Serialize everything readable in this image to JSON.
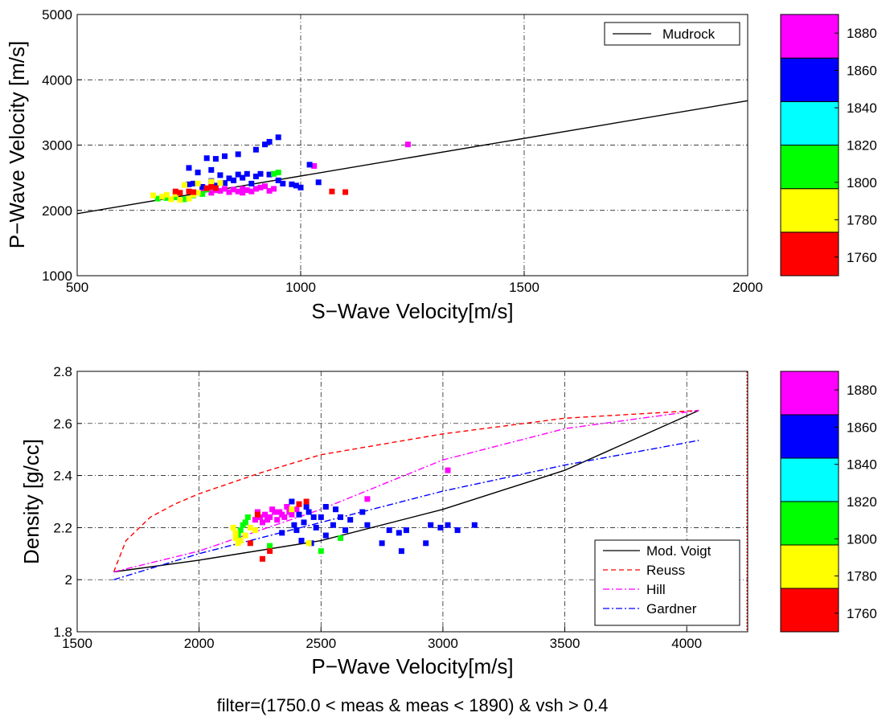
{
  "footer": "filter=(1750.0 < meas & meas < 1890) & vsh > 0.4",
  "colorbar": {
    "ticks": [
      1760,
      1780,
      1800,
      1820,
      1840,
      1860,
      1880
    ],
    "range": [
      1750,
      1890
    ],
    "colors": [
      "#ff0000",
      "#ffff00",
      "#00ff00",
      "#00ffff",
      "#0000ff",
      "#ff00ff"
    ]
  },
  "chart_data": [
    {
      "type": "scatter",
      "xlabel": "S−Wave Velocity[m/s]",
      "ylabel": "P−Wave Velocity [m/s]",
      "xlim": [
        500,
        2000
      ],
      "ylim": [
        1000,
        5000
      ],
      "xticks": [
        500,
        1000,
        1500,
        2000
      ],
      "yticks": [
        1000,
        2000,
        3000,
        4000,
        5000
      ],
      "grid": true,
      "legend_position": "top-right",
      "lines": [
        {
          "name": "Mudrock",
          "color": "#000000",
          "dash": "solid",
          "points": [
            [
              500,
              1950
            ],
            [
              2000,
              3680
            ]
          ]
        }
      ],
      "points": [
        [
          1240,
          3010,
          1880
        ],
        [
          1030,
          2680,
          1880
        ],
        [
          920,
          2370,
          1880
        ],
        [
          900,
          2330,
          1880
        ],
        [
          880,
          2310,
          1880
        ],
        [
          860,
          2290,
          1880
        ],
        [
          840,
          2280,
          1880
        ],
        [
          820,
          2300,
          1880
        ],
        [
          800,
          2270,
          1880
        ],
        [
          780,
          2290,
          1880
        ],
        [
          940,
          2330,
          1880
        ],
        [
          910,
          2350,
          1880
        ],
        [
          870,
          2330,
          1880
        ],
        [
          850,
          2320,
          1880
        ],
        [
          830,
          2330,
          1880
        ],
        [
          810,
          2310,
          1880
        ],
        [
          890,
          2290,
          1880
        ],
        [
          930,
          2300,
          1880
        ],
        [
          760,
          2260,
          1880
        ],
        [
          870,
          2270,
          1880
        ],
        [
          950,
          3120,
          1860
        ],
        [
          930,
          3050,
          1860
        ],
        [
          920,
          3010,
          1860
        ],
        [
          900,
          2930,
          1860
        ],
        [
          860,
          2860,
          1860
        ],
        [
          830,
          2830,
          1860
        ],
        [
          810,
          2790,
          1860
        ],
        [
          790,
          2800,
          1860
        ],
        [
          750,
          2650,
          1860
        ],
        [
          770,
          2580,
          1860
        ],
        [
          800,
          2620,
          1860
        ],
        [
          820,
          2540,
          1860
        ],
        [
          840,
          2490,
          1860
        ],
        [
          880,
          2560,
          1860
        ],
        [
          900,
          2520,
          1860
        ],
        [
          950,
          2460,
          1860
        ],
        [
          980,
          2400,
          1860
        ],
        [
          1000,
          2350,
          1860
        ],
        [
          1020,
          2700,
          1860
        ],
        [
          1040,
          2430,
          1860
        ],
        [
          960,
          2410,
          1860
        ],
        [
          850,
          2460,
          1860
        ],
        [
          870,
          2500,
          1860
        ],
        [
          810,
          2380,
          1860
        ],
        [
          780,
          2360,
          1860
        ],
        [
          910,
          2560,
          1860
        ],
        [
          930,
          2550,
          1860
        ],
        [
          860,
          2550,
          1860
        ],
        [
          990,
          2380,
          1860
        ],
        [
          890,
          2410,
          1860
        ],
        [
          830,
          2420,
          1860
        ],
        [
          750,
          2400,
          1860
        ],
        [
          800,
          2450,
          1860
        ],
        [
          760,
          2410,
          1860
        ],
        [
          950,
          2580,
          1800
        ],
        [
          700,
          2190,
          1800
        ],
        [
          720,
          2200,
          1800
        ],
        [
          740,
          2170,
          1800
        ],
        [
          760,
          2230,
          1800
        ],
        [
          780,
          2250,
          1800
        ],
        [
          790,
          2320,
          1800
        ],
        [
          680,
          2180,
          1800
        ],
        [
          940,
          2560,
          1800
        ],
        [
          670,
          2230,
          1780
        ],
        [
          690,
          2210,
          1780
        ],
        [
          710,
          2170,
          1780
        ],
        [
          730,
          2160,
          1780
        ],
        [
          750,
          2180,
          1780
        ],
        [
          760,
          2240,
          1780
        ],
        [
          770,
          2270,
          1780
        ],
        [
          740,
          2390,
          1780
        ],
        [
          770,
          2410,
          1780
        ],
        [
          800,
          2440,
          1780
        ],
        [
          820,
          2420,
          1780
        ],
        [
          720,
          2250,
          1780
        ],
        [
          700,
          2240,
          1780
        ],
        [
          1070,
          2290,
          1760
        ],
        [
          1100,
          2280,
          1760
        ],
        [
          720,
          2290,
          1760
        ],
        [
          730,
          2270,
          1760
        ],
        [
          750,
          2290,
          1760
        ],
        [
          760,
          2280,
          1760
        ],
        [
          790,
          2340,
          1760
        ],
        [
          810,
          2340,
          1760
        ],
        [
          800,
          2360,
          1760
        ]
      ]
    },
    {
      "type": "scatter",
      "xlabel": "P−Wave Velocity[m/s]",
      "ylabel": "Density [g/cc]",
      "xlim": [
        1500,
        4250
      ],
      "ylim": [
        1.8,
        2.8
      ],
      "xticks": [
        1500,
        2000,
        2500,
        3000,
        3500,
        4000
      ],
      "yticks": [
        1.8,
        2,
        2.2,
        2.4,
        2.6,
        2.8
      ],
      "grid": true,
      "legend_position": "bottom-right",
      "lines": [
        {
          "name": "Mod. Voigt",
          "color": "#000000",
          "dash": "solid",
          "points": [
            [
              1650,
              2.03
            ],
            [
              2000,
              2.075
            ],
            [
              2500,
              2.15
            ],
            [
              3000,
              2.27
            ],
            [
              3500,
              2.42
            ],
            [
              4050,
              2.65
            ]
          ]
        },
        {
          "name": "Reuss",
          "color": "#ff0000",
          "dash": "dashed",
          "points": [
            [
              1650,
              2.03
            ],
            [
              1700,
              2.15
            ],
            [
              1800,
              2.24
            ],
            [
              1900,
              2.29
            ],
            [
              2000,
              2.33
            ],
            [
              2250,
              2.41
            ],
            [
              2500,
              2.48
            ],
            [
              3000,
              2.56
            ],
            [
              3500,
              2.62
            ],
            [
              4050,
              2.65
            ]
          ]
        },
        {
          "name": "Hill",
          "color": "#ff00ff",
          "dash": "dashdot",
          "points": [
            [
              1650,
              2.03
            ],
            [
              2000,
              2.11
            ],
            [
              2500,
              2.27
            ],
            [
              3000,
              2.46
            ],
            [
              3500,
              2.58
            ],
            [
              4050,
              2.65
            ]
          ]
        },
        {
          "name": "Gardner",
          "color": "#0000ff",
          "dash": "dashdot",
          "points": [
            [
              1650,
              2.0
            ],
            [
              2000,
              2.1
            ],
            [
              2500,
              2.22
            ],
            [
              3000,
              2.34
            ],
            [
              3500,
              2.44
            ],
            [
              4050,
              2.535
            ]
          ]
        }
      ],
      "vertical_line": {
        "x": 4250,
        "color": "#ff0000"
      },
      "points": [
        [
          3020,
          2.42,
          1880
        ],
        [
          2690,
          2.31,
          1880
        ],
        [
          2400,
          2.27,
          1880
        ],
        [
          2370,
          2.26,
          1880
        ],
        [
          2340,
          2.25,
          1880
        ],
        [
          2310,
          2.26,
          1880
        ],
        [
          2290,
          2.24,
          1880
        ],
        [
          2270,
          2.25,
          1880
        ],
        [
          2250,
          2.24,
          1880
        ],
        [
          2230,
          2.23,
          1880
        ],
        [
          2320,
          2.23,
          1880
        ],
        [
          2350,
          2.24,
          1880
        ],
        [
          2380,
          2.25,
          1880
        ],
        [
          2260,
          2.22,
          1880
        ],
        [
          2300,
          2.27,
          1880
        ],
        [
          2330,
          2.26,
          1880
        ],
        [
          2280,
          2.23,
          1880
        ],
        [
          2360,
          2.28,
          1880
        ],
        [
          2410,
          2.29,
          1880
        ],
        [
          2240,
          2.26,
          1880
        ],
        [
          3130,
          2.21,
          1860
        ],
        [
          3060,
          2.19,
          1860
        ],
        [
          3020,
          2.21,
          1860
        ],
        [
          2990,
          2.2,
          1860
        ],
        [
          2950,
          2.21,
          1860
        ],
        [
          2930,
          2.14,
          1860
        ],
        [
          2830,
          2.11,
          1860
        ],
        [
          2820,
          2.18,
          1860
        ],
        [
          2780,
          2.19,
          1860
        ],
        [
          2750,
          2.14,
          1860
        ],
        [
          2690,
          2.21,
          1860
        ],
        [
          2670,
          2.26,
          1860
        ],
        [
          2620,
          2.23,
          1860
        ],
        [
          2580,
          2.24,
          1860
        ],
        [
          2550,
          2.21,
          1860
        ],
        [
          2520,
          2.28,
          1860
        ],
        [
          2500,
          2.24,
          1860
        ],
        [
          2480,
          2.2,
          1860
        ],
        [
          2450,
          2.26,
          1860
        ],
        [
          2430,
          2.22,
          1860
        ],
        [
          2400,
          2.19,
          1860
        ],
        [
          2380,
          2.3,
          1860
        ],
        [
          2340,
          2.18,
          1860
        ],
        [
          2420,
          2.15,
          1860
        ],
        [
          2520,
          2.17,
          1860
        ],
        [
          2460,
          2.14,
          1860
        ],
        [
          2440,
          2.28,
          1860
        ],
        [
          2410,
          2.25,
          1860
        ],
        [
          2600,
          2.19,
          1860
        ],
        [
          2560,
          2.27,
          1860
        ],
        [
          2470,
          2.24,
          1860
        ],
        [
          2390,
          2.21,
          1860
        ],
        [
          2850,
          2.19,
          1860
        ],
        [
          2580,
          2.16,
          1800
        ],
        [
          2500,
          2.11,
          1800
        ],
        [
          2290,
          2.13,
          1800
        ],
        [
          2200,
          2.24,
          1800
        ],
        [
          2180,
          2.21,
          1800
        ],
        [
          2170,
          2.19,
          1800
        ],
        [
          2160,
          2.17,
          1800
        ],
        [
          2190,
          2.22,
          1800
        ],
        [
          2140,
          2.2,
          1780
        ],
        [
          2150,
          2.18,
          1780
        ],
        [
          2160,
          2.14,
          1780
        ],
        [
          2170,
          2.15,
          1780
        ],
        [
          2190,
          2.17,
          1780
        ],
        [
          2210,
          2.2,
          1780
        ],
        [
          2230,
          2.19,
          1780
        ],
        [
          2450,
          2.14,
          1780
        ],
        [
          2380,
          2.27,
          1780
        ],
        [
          2150,
          2.16,
          1780
        ],
        [
          2260,
          2.08,
          1760
        ],
        [
          2290,
          2.11,
          1760
        ],
        [
          2440,
          2.3,
          1760
        ],
        [
          2210,
          2.14,
          1760
        ],
        [
          2240,
          2.25,
          1760
        ],
        [
          2410,
          2.29,
          1760
        ]
      ]
    }
  ]
}
